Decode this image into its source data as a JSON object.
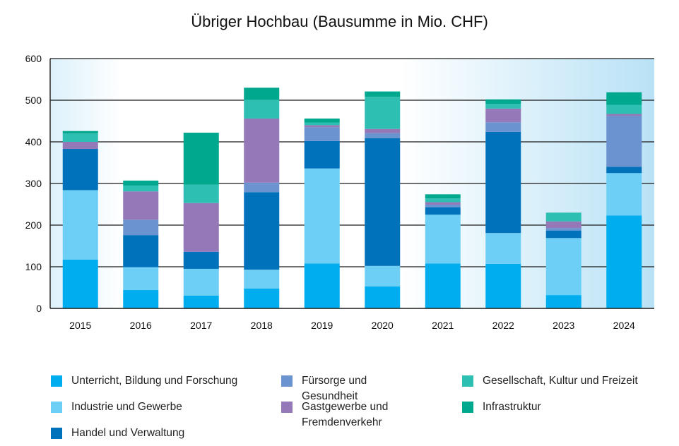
{
  "chart_data": {
    "type": "bar",
    "stacked": true,
    "title": "Übriger Hochbau (Bausumme in Mio. CHF)",
    "xlabel": "",
    "ylabel": "",
    "ylim": [
      0,
      600
    ],
    "yticks": [
      0,
      100,
      200,
      300,
      400,
      500,
      600
    ],
    "grid": true,
    "legend_position": "bottom",
    "categories": [
      "2015",
      "2016",
      "2017",
      "2018",
      "2019",
      "2020",
      "2021",
      "2022",
      "2023",
      "2024"
    ],
    "series": [
      {
        "name": "Unterricht, Bildung und Forschung",
        "color": "#00aeef",
        "values": [
          117,
          44,
          31,
          48,
          108,
          53,
          108,
          107,
          32,
          223
        ]
      },
      {
        "name": "Industrie und Gewerbe",
        "color": "#6dcff6",
        "values": [
          167,
          55,
          64,
          45,
          228,
          49,
          117,
          74,
          137,
          102
        ]
      },
      {
        "name": "Handel und Verwaltung",
        "color": "#0072bc",
        "values": [
          99,
          77,
          41,
          186,
          66,
          307,
          18,
          243,
          18,
          15
        ]
      },
      {
        "name": "Fürsorge und Gesundheit",
        "color": "#6a93cf",
        "values": [
          0,
          37,
          0,
          23,
          33,
          12,
          6,
          23,
          6,
          122
        ]
      },
      {
        "name": "Gastgewerbe und Fremdenverkehr",
        "color": "#9478b8",
        "values": [
          17,
          68,
          117,
          154,
          5,
          10,
          6,
          33,
          16,
          5
        ]
      },
      {
        "name": "Gesellschaft, Kultur und Freizeit",
        "color": "#2ebfb3",
        "values": [
          20,
          14,
          44,
          45,
          6,
          77,
          9,
          11,
          21,
          22
        ]
      },
      {
        "name": "Infrastruktur",
        "color": "#00a88e",
        "values": [
          6,
          12,
          125,
          29,
          10,
          13,
          10,
          11,
          0,
          30
        ]
      }
    ]
  },
  "legend_layout": [
    {
      "series": 0,
      "col": 0,
      "row": 0
    },
    {
      "series": 1,
      "col": 0,
      "row": 1
    },
    {
      "series": 2,
      "col": 0,
      "row": 2
    },
    {
      "series": 3,
      "col": 1,
      "row": 0
    },
    {
      "series": 4,
      "col": 1,
      "row": 1
    },
    {
      "series": 5,
      "col": 2,
      "row": 0
    },
    {
      "series": 6,
      "col": 2,
      "row": 1
    }
  ]
}
